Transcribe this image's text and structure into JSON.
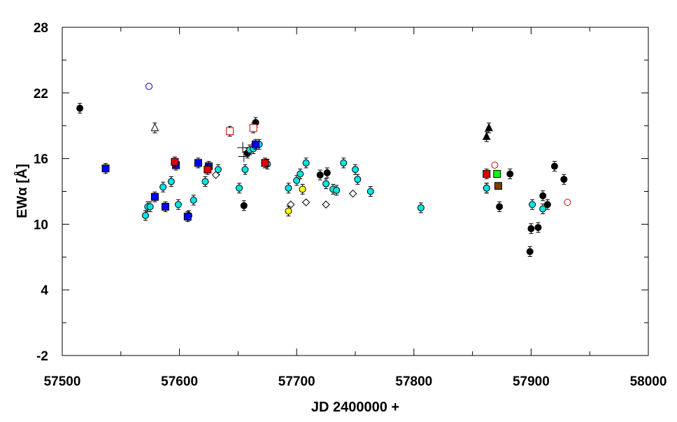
{
  "chart_data": {
    "type": "scatter",
    "xlabel": "JD 2400000 +",
    "ylabel": "EWα [Å]",
    "xlim": [
      57500,
      58000
    ],
    "ylim": [
      -2,
      28
    ],
    "xticks": [
      "57500",
      "57600",
      "57700",
      "57800",
      "57900",
      "58000"
    ],
    "yticks": [
      "-2",
      "4",
      "10",
      "16",
      "22",
      "28"
    ],
    "series": [
      {
        "name": "black-filled-circle",
        "marker": "circle",
        "fill": "#000000",
        "stroke": "#000000",
        "errorbars": true,
        "points": [
          [
            57515,
            20.6
          ],
          [
            57655,
            11.7
          ],
          [
            57658,
            16.5
          ],
          [
            57665,
            19.3
          ],
          [
            57720,
            14.5
          ],
          [
            57726,
            14.7
          ],
          [
            57862,
            13.3
          ],
          [
            57873,
            11.6
          ],
          [
            57882,
            14.6
          ],
          [
            57899,
            7.5
          ],
          [
            57900,
            9.6
          ],
          [
            57906,
            9.7
          ],
          [
            57910,
            12.6
          ],
          [
            57914,
            11.8
          ],
          [
            57920,
            15.3
          ],
          [
            57928,
            14.1
          ]
        ]
      },
      {
        "name": "cyan-circle",
        "marker": "circle",
        "fill": "#00e5e5",
        "stroke": "#000000",
        "errorbars": true,
        "points": [
          [
            57571,
            10.8
          ],
          [
            57573,
            11.6
          ],
          [
            57575,
            11.6
          ],
          [
            57586,
            13.4
          ],
          [
            57593,
            13.9
          ],
          [
            57599,
            11.8
          ],
          [
            57608,
            10.8
          ],
          [
            57612,
            12.2
          ],
          [
            57622,
            13.9
          ],
          [
            57633,
            15.0
          ],
          [
            57651,
            13.3
          ],
          [
            57656,
            15.0
          ],
          [
            57660,
            16.8
          ],
          [
            57663,
            16.9
          ],
          [
            57668,
            17.3
          ],
          [
            57675,
            15.5
          ],
          [
            57693,
            13.3
          ],
          [
            57700,
            14.0
          ],
          [
            57703,
            14.6
          ],
          [
            57708,
            15.6
          ],
          [
            57725,
            13.7
          ],
          [
            57731,
            13.2
          ],
          [
            57734,
            13.1
          ],
          [
            57740,
            15.6
          ],
          [
            57750,
            15.0
          ],
          [
            57752,
            14.1
          ],
          [
            57763,
            13.0
          ],
          [
            57806,
            11.5
          ],
          [
            57862,
            13.3
          ],
          [
            57901,
            11.8
          ],
          [
            57910,
            11.4
          ]
        ]
      },
      {
        "name": "blue-square",
        "marker": "square",
        "fill": "#0000ff",
        "stroke": "#000000",
        "errorbars": true,
        "points": [
          [
            57537,
            15.1
          ],
          [
            57579,
            12.5
          ],
          [
            57588,
            11.6
          ],
          [
            57597,
            15.4
          ],
          [
            57607,
            10.7
          ],
          [
            57616,
            15.6
          ],
          [
            57625,
            15.3
          ],
          [
            57665,
            17.3
          ]
        ]
      },
      {
        "name": "red-square",
        "marker": "square",
        "fill": "#dd0000",
        "stroke": "#000000",
        "errorbars": true,
        "points": [
          [
            57596,
            15.7
          ],
          [
            57624,
            15.0
          ],
          [
            57673,
            15.6
          ],
          [
            57862,
            14.6
          ]
        ]
      },
      {
        "name": "open-red-square",
        "marker": "square",
        "fill": "#ffffff",
        "stroke": "#cc0000",
        "errorbars": true,
        "points": [
          [
            57643,
            18.5
          ],
          [
            57663,
            18.8
          ]
        ]
      },
      {
        "name": "open-diamond",
        "marker": "diamond",
        "fill": "#ffffff",
        "stroke": "#000000",
        "errorbars": false,
        "points": [
          [
            57631,
            14.5
          ],
          [
            57695,
            11.8
          ],
          [
            57708,
            12.0
          ],
          [
            57725,
            11.8
          ],
          [
            57748,
            12.8
          ]
        ]
      },
      {
        "name": "yellow-circle",
        "marker": "circle",
        "fill": "#ffff00",
        "stroke": "#000000",
        "errorbars": true,
        "points": [
          [
            57693,
            11.2
          ],
          [
            57705,
            13.2
          ]
        ]
      },
      {
        "name": "black-triangle",
        "marker": "triangle",
        "fill": "#000000",
        "stroke": "#000000",
        "errorbars": true,
        "points": [
          [
            57862,
            18.0
          ],
          [
            57864,
            18.8
          ]
        ]
      },
      {
        "name": "open-triangle",
        "marker": "triangle",
        "fill": "#ffffff",
        "stroke": "#000000",
        "errorbars": true,
        "points": [
          [
            57579,
            18.8
          ]
        ]
      },
      {
        "name": "open-blue-circle",
        "marker": "circle",
        "fill": "#ffffff",
        "stroke": "#0000cc",
        "errorbars": false,
        "points": [
          [
            57574,
            22.6
          ]
        ]
      },
      {
        "name": "open-red-circle",
        "marker": "circle",
        "fill": "#ffffff",
        "stroke": "#cc0000",
        "errorbars": false,
        "points": [
          [
            57869,
            15.4
          ],
          [
            57931,
            12.0
          ]
        ]
      },
      {
        "name": "green-square",
        "marker": "square",
        "fill": "#00ff00",
        "stroke": "#000000",
        "errorbars": false,
        "points": [
          [
            57871,
            14.6
          ]
        ]
      },
      {
        "name": "brown-square",
        "marker": "square",
        "fill": "#7a3d00",
        "stroke": "#000000",
        "errorbars": false,
        "points": [
          [
            57872,
            13.5
          ]
        ]
      },
      {
        "name": "plus-marker",
        "marker": "plus",
        "fill": "#000000",
        "stroke": "#000000",
        "errorbars": false,
        "points": [
          [
            57654,
            17.0
          ],
          [
            57655,
            16.2
          ]
        ]
      }
    ]
  }
}
